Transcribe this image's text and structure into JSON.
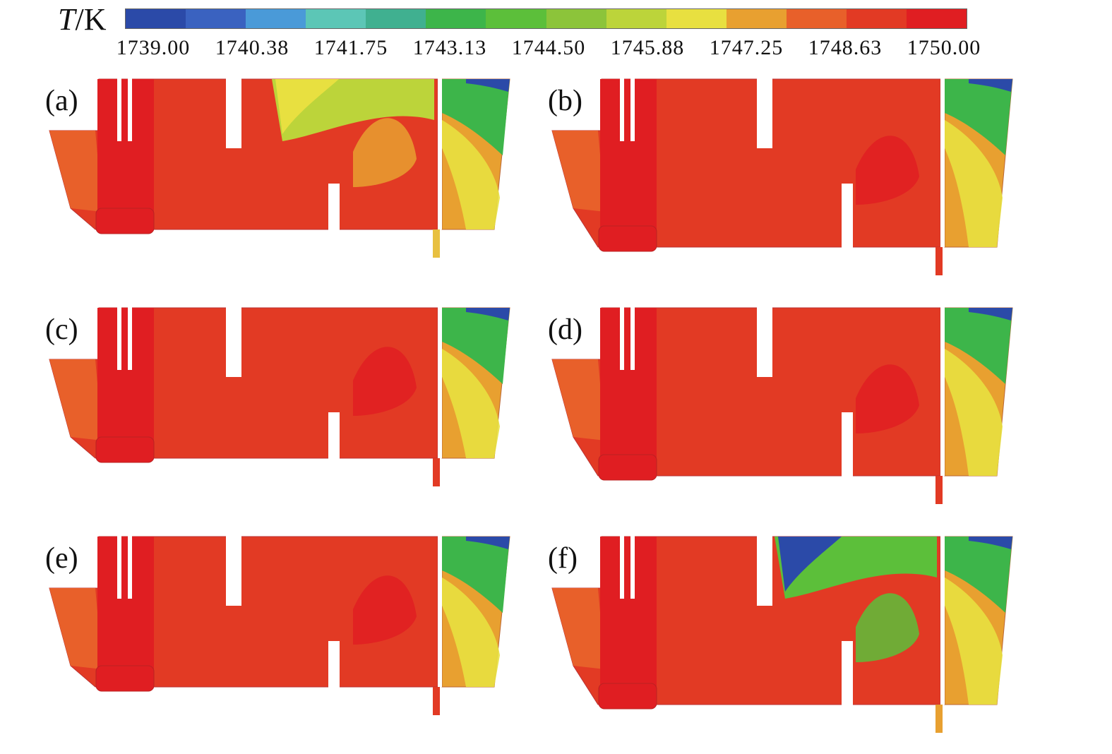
{
  "legend": {
    "symbol": "T",
    "unit": "/K",
    "ticks": [
      "1739.00",
      "1740.38",
      "1741.75",
      "1743.13",
      "1744.50",
      "1745.88",
      "1747.25",
      "1748.63",
      "1750.00"
    ],
    "colors": [
      "#2b4aa8",
      "#3a62c0",
      "#4a9ad8",
      "#5cc6b6",
      "#40b090",
      "#3db54a",
      "#5cbf3a",
      "#8cc43a",
      "#bcd43a",
      "#e8e040",
      "#e8a030",
      "#e8602a",
      "#e23a24",
      "#e01e22"
    ]
  },
  "panels": [
    {
      "id": "a",
      "label": "(a)"
    },
    {
      "id": "b",
      "label": "(b)"
    },
    {
      "id": "c",
      "label": "(c)"
    },
    {
      "id": "d",
      "label": "(d)"
    },
    {
      "id": "e",
      "label": "(e)"
    },
    {
      "id": "f",
      "label": "(f)"
    }
  ]
}
